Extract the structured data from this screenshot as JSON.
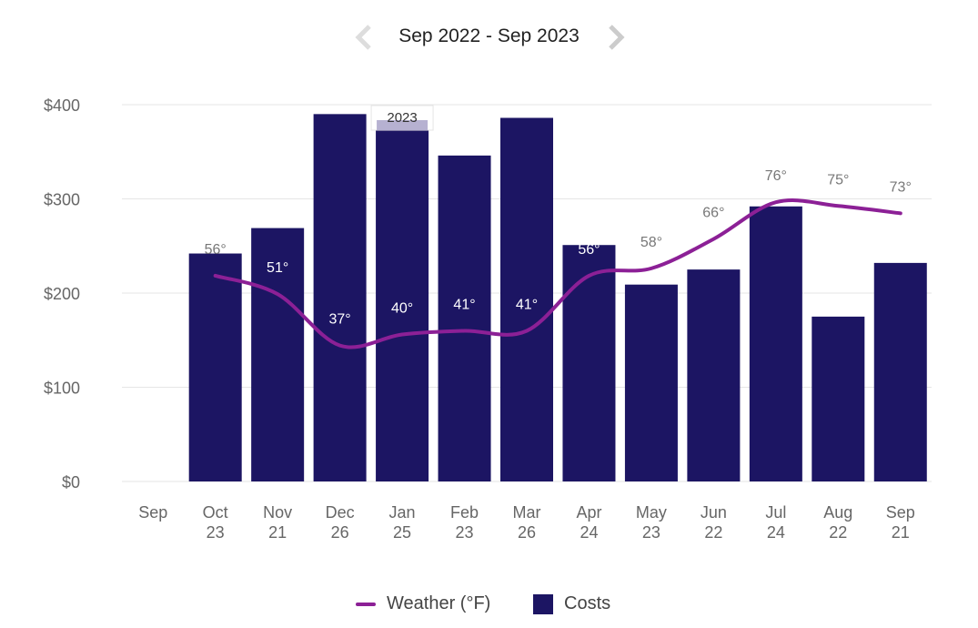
{
  "header": {
    "range_label": "Sep 2022 - Sep 2023"
  },
  "colors": {
    "bars": "#1c1563",
    "line": "#8c2096",
    "grid": "#e6e6e6",
    "axis_text": "#666666",
    "nav": "#cccccc"
  },
  "tooltip": {
    "label": "2023"
  },
  "legend": {
    "weather_label": "Weather (°F)",
    "costs_label": "Costs"
  },
  "chart_data": {
    "type": "bar",
    "categories": [
      "Sep",
      "Oct",
      "Nov",
      "Dec",
      "Jan",
      "Feb",
      "Mar",
      "Apr",
      "May",
      "Jun",
      "Jul",
      "Aug",
      "Sep"
    ],
    "day_labels": [
      "",
      "23",
      "21",
      "26",
      "25",
      "23",
      "26",
      "24",
      "23",
      "22",
      "24",
      "22",
      "21"
    ],
    "y_ticks": [
      "$0",
      "$100",
      "$200",
      "$300",
      "$400"
    ],
    "ylim": [
      0,
      400
    ],
    "grid": true,
    "legend_position": "bottom",
    "series": [
      {
        "name": "Costs",
        "type": "bar",
        "values": [
          null,
          242,
          269,
          390,
          382,
          346,
          386,
          251,
          209,
          225,
          292,
          175,
          232
        ]
      },
      {
        "name": "Weather (°F)",
        "type": "line",
        "values": [
          null,
          56,
          51,
          37,
          40,
          41,
          41,
          56,
          58,
          66,
          76,
          75,
          73
        ],
        "labels": [
          "",
          "56°",
          "51°",
          "37°",
          "40°",
          "41°",
          "41°",
          "56°",
          "58°",
          "66°",
          "76°",
          "75°",
          "73°"
        ]
      }
    ]
  }
}
